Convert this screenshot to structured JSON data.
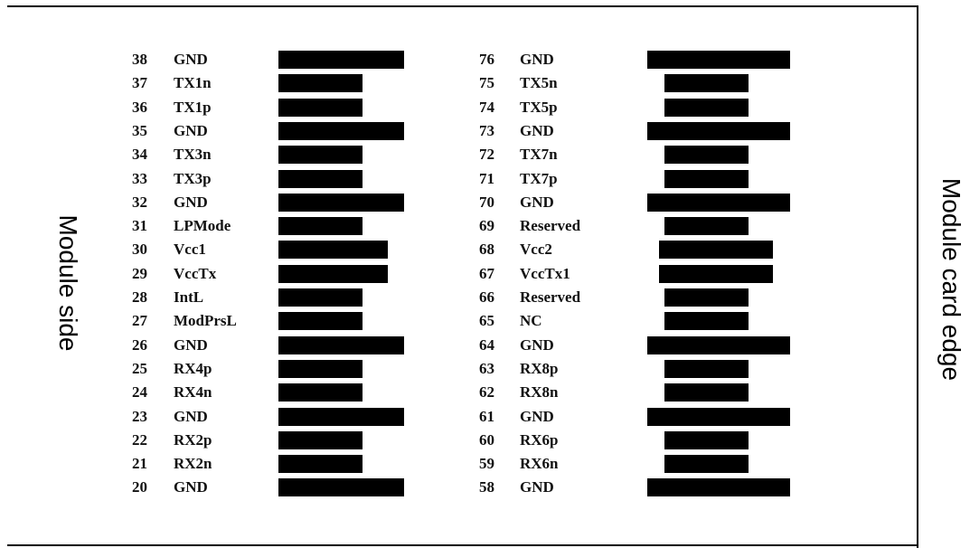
{
  "labels": {
    "module_side": "Module side",
    "card_edge": "Module card edge"
  },
  "left_column": [
    {
      "num": "38",
      "name": "GND",
      "kind": "ground"
    },
    {
      "num": "37",
      "name": "TX1n",
      "kind": "signal"
    },
    {
      "num": "36",
      "name": "TX1p",
      "kind": "signal"
    },
    {
      "num": "35",
      "name": "GND",
      "kind": "ground"
    },
    {
      "num": "34",
      "name": "TX3n",
      "kind": "signal"
    },
    {
      "num": "33",
      "name": "TX3p",
      "kind": "signal"
    },
    {
      "num": "32",
      "name": "GND",
      "kind": "ground"
    },
    {
      "num": "31",
      "name": "LPMode",
      "kind": "signal"
    },
    {
      "num": "30",
      "name": "Vcc1",
      "kind": "power"
    },
    {
      "num": "29",
      "name": "VccTx",
      "kind": "power"
    },
    {
      "num": "28",
      "name": "IntL",
      "kind": "signal"
    },
    {
      "num": "27",
      "name": "ModPrsL",
      "kind": "signal"
    },
    {
      "num": "26",
      "name": "GND",
      "kind": "ground"
    },
    {
      "num": "25",
      "name": "RX4p",
      "kind": "signal"
    },
    {
      "num": "24",
      "name": "RX4n",
      "kind": "signal"
    },
    {
      "num": "23",
      "name": "GND",
      "kind": "ground"
    },
    {
      "num": "22",
      "name": "RX2p",
      "kind": "signal"
    },
    {
      "num": "21",
      "name": "RX2n",
      "kind": "signal"
    },
    {
      "num": "20",
      "name": "GND",
      "kind": "ground"
    }
  ],
  "right_column": [
    {
      "num": "76",
      "name": "GND",
      "kind": "ground"
    },
    {
      "num": "75",
      "name": "TX5n",
      "kind": "signal"
    },
    {
      "num": "74",
      "name": "TX5p",
      "kind": "signal"
    },
    {
      "num": "73",
      "name": "GND",
      "kind": "ground"
    },
    {
      "num": "72",
      "name": "TX7n",
      "kind": "signal"
    },
    {
      "num": "71",
      "name": "TX7p",
      "kind": "signal"
    },
    {
      "num": "70",
      "name": "GND",
      "kind": "ground"
    },
    {
      "num": "69",
      "name": "Reserved",
      "kind": "signal"
    },
    {
      "num": "68",
      "name": "Vcc2",
      "kind": "power"
    },
    {
      "num": "67",
      "name": "VccTx1",
      "kind": "power"
    },
    {
      "num": "66",
      "name": "Reserved",
      "kind": "signal"
    },
    {
      "num": "65",
      "name": "NC",
      "kind": "signal"
    },
    {
      "num": "64",
      "name": "GND",
      "kind": "ground"
    },
    {
      "num": "63",
      "name": "RX8p",
      "kind": "signal"
    },
    {
      "num": "62",
      "name": "RX8n",
      "kind": "signal"
    },
    {
      "num": "61",
      "name": "GND",
      "kind": "ground"
    },
    {
      "num": "60",
      "name": "RX6p",
      "kind": "signal"
    },
    {
      "num": "59",
      "name": "RX6n",
      "kind": "signal"
    },
    {
      "num": "58",
      "name": "GND",
      "kind": "ground"
    }
  ]
}
